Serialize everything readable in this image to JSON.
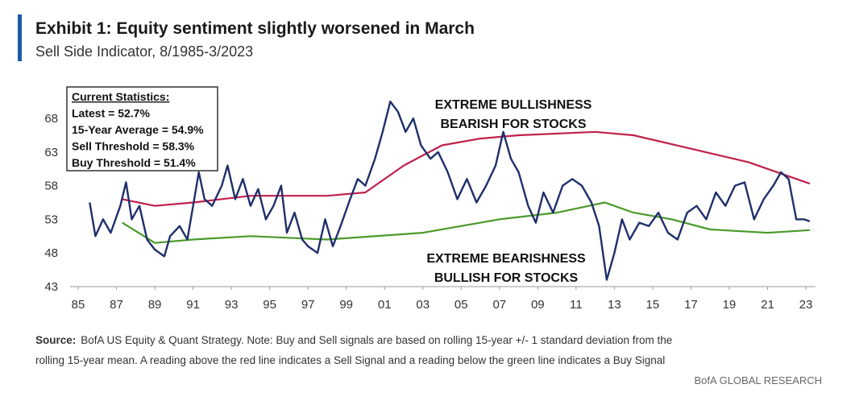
{
  "chart_data": {
    "type": "line",
    "title": "Exhibit 1: Equity sentiment slightly worsened in March",
    "subtitle": "Sell Side Indicator, 8/1985-3/2023",
    "stats_box": [
      "Current Statistics:",
      "Latest = 52.7%",
      "15-Year Average = 54.9%",
      "Sell Threshold = 58.3%",
      "Buy Threshold = 51.4%"
    ],
    "annotations": [
      {
        "lines": [
          "EXTREME BULLISHNESS",
          "BEARISH FOR STOCKS"
        ]
      },
      {
        "lines": [
          "EXTREME BEARISHNESS",
          "BULLISH FOR STOCKS"
        ]
      }
    ],
    "source_label": "Source:",
    "source_lines": [
      "BofA US Equity & Quant Strategy. Note: Buy and Sell signals are based on rolling 15-year +/- 1 standard deviation from the",
      "rolling 15-year mean. A reading above the red line indicates a Sell Signal and a reading below the green line indicates a Buy Signal"
    ],
    "footer": "BofA GLOBAL RESEARCH",
    "xlim": [
      1985,
      2023.5
    ],
    "xticks": [
      {
        "value": 1985,
        "label": "85"
      },
      {
        "value": 1987,
        "label": "87"
      },
      {
        "value": 1989,
        "label": "89"
      },
      {
        "value": 1991,
        "label": "91"
      },
      {
        "value": 1993,
        "label": "93"
      },
      {
        "value": 1995,
        "label": "95"
      },
      {
        "value": 1997,
        "label": "97"
      },
      {
        "value": 1999,
        "label": "99"
      },
      {
        "value": 2001,
        "label": "01"
      },
      {
        "value": 2003,
        "label": "03"
      },
      {
        "value": 2005,
        "label": "05"
      },
      {
        "value": 2007,
        "label": "07"
      },
      {
        "value": 2009,
        "label": "09"
      },
      {
        "value": 2011,
        "label": "11"
      },
      {
        "value": 2013,
        "label": "13"
      },
      {
        "value": 2015,
        "label": "15"
      },
      {
        "value": 2017,
        "label": "17"
      },
      {
        "value": 2019,
        "label": "19"
      },
      {
        "value": 2021,
        "label": "21"
      },
      {
        "value": 2023,
        "label": "23"
      }
    ],
    "ylim": [
      43,
      71
    ],
    "yticks": [
      43,
      48,
      53,
      58,
      63,
      68
    ],
    "grid": false,
    "series": [
      {
        "color": "#1f2f6b",
        "x": [
          1985.6,
          1985.9,
          1986.3,
          1986.7,
          1987.2,
          1987.5,
          1987.8,
          1988.2,
          1988.6,
          1989.0,
          1989.5,
          1989.8,
          1990.3,
          1990.7,
          1991.0,
          1991.3,
          1991.6,
          1992.0,
          1992.5,
          1992.8,
          1993.2,
          1993.6,
          1994.0,
          1994.4,
          1994.8,
          1995.2,
          1995.6,
          1995.9,
          1996.3,
          1996.7,
          1997.0,
          1997.5,
          1997.9,
          1998.3,
          1998.7,
          1999.2,
          1999.6,
          2000.0,
          2000.5,
          2000.9,
          2001.3,
          2001.7,
          2002.1,
          2002.5,
          2002.9,
          2003.4,
          2003.8,
          2004.3,
          2004.8,
          2005.3,
          2005.8,
          2006.3,
          2006.8,
          2007.2,
          2007.6,
          2008.0,
          2008.5,
          2008.9,
          2009.3,
          2009.8,
          2010.3,
          2010.8,
          2011.3,
          2011.8,
          2012.2,
          2012.6,
          2013.0,
          2013.4,
          2013.8,
          2014.3,
          2014.8,
          2015.3,
          2015.8,
          2016.3,
          2016.8,
          2017.3,
          2017.8,
          2018.3,
          2018.8,
          2019.3,
          2019.8,
          2020.3,
          2020.8,
          2021.3,
          2021.7,
          2022.1,
          2022.5,
          2022.9,
          2023.2
        ],
        "values": [
          55.5,
          50.5,
          53,
          51,
          55,
          58.5,
          53,
          55,
          50,
          48.5,
          47.5,
          50.5,
          52,
          50,
          55,
          60,
          56,
          55,
          58,
          61,
          56,
          59,
          55,
          57.5,
          53,
          55,
          58,
          51,
          54,
          50,
          49,
          48,
          53,
          49,
          52,
          56,
          59,
          58,
          62,
          66,
          70.5,
          69,
          66,
          68,
          64,
          62,
          63,
          60,
          56,
          59,
          55.5,
          58,
          61,
          66,
          62,
          60,
          55,
          52.5,
          57,
          54,
          58,
          59,
          58,
          55.5,
          52,
          44,
          48,
          53,
          50,
          52.5,
          52,
          54,
          51,
          50,
          54,
          55,
          53,
          57,
          55,
          58,
          58.5,
          53,
          56,
          58,
          60,
          59,
          53,
          53,
          52.7
        ]
      },
      {
        "color": "#c0204a",
        "x": [
          1987.3,
          1989,
          1991,
          1994,
          1998,
          2000,
          2002,
          2004,
          2006,
          2008,
          2012,
          2014,
          2017,
          2020,
          2023.2
        ],
        "values": [
          56,
          55,
          55.5,
          56.5,
          56.5,
          57,
          61,
          64,
          65,
          65.5,
          66,
          65.5,
          63.5,
          61.5,
          58.3
        ]
      },
      {
        "color": "#4a9a2a",
        "x": [
          1987.3,
          1989,
          1991,
          1994,
          1998,
          2003,
          2007,
          2010,
          2012.5,
          2014,
          2016,
          2018,
          2021,
          2023.2
        ],
        "values": [
          52.5,
          49.5,
          50,
          50.5,
          50,
          51,
          53,
          54,
          55.5,
          54,
          53,
          51.5,
          51,
          51.4
        ]
      }
    ]
  }
}
